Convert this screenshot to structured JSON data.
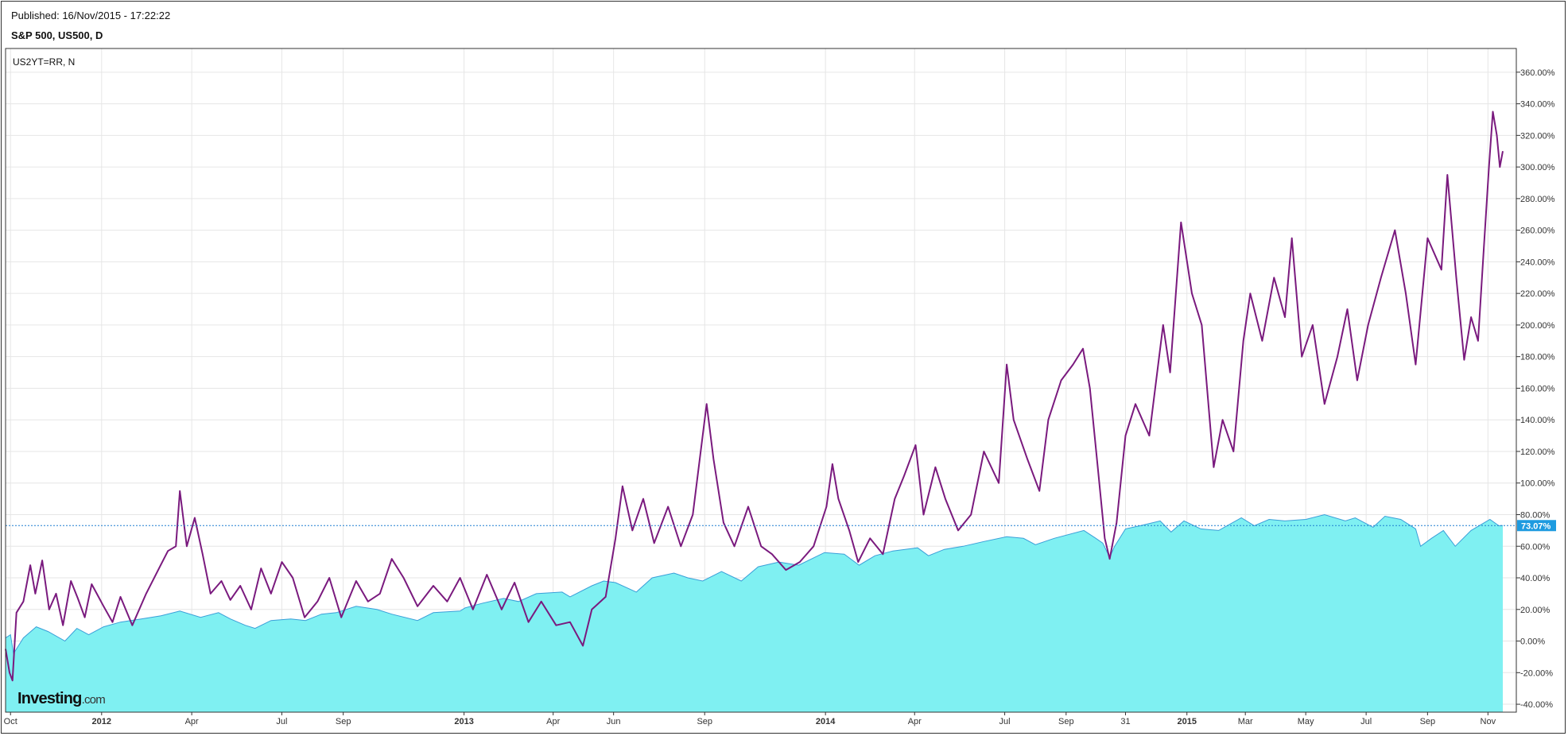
{
  "header": {
    "published": "Published: 16/Nov/2015 - 17:22:22",
    "symbol": "S&P 500, US500, D"
  },
  "logo": {
    "brand": "Investing",
    "suffix": ".com"
  },
  "colors": {
    "sp500_fill": "#7ff0f2",
    "sp500_line": "#3a9fd8",
    "us2yt_line": "#7a1a7e",
    "current_label_bg": "#1e9be0",
    "current_line": "#1e7fd0",
    "grid": "#e6e6e6"
  },
  "chart_data": {
    "type": "area",
    "title": "S&P 500, US500, D",
    "legend": "US2YT=RR, N",
    "ylabel": "",
    "xlabel": "",
    "ylim": [
      -45,
      375
    ],
    "y_ticks": [
      "360.00%",
      "340.00%",
      "320.00%",
      "300.00%",
      "280.00%",
      "260.00%",
      "240.00%",
      "220.00%",
      "200.00%",
      "180.00%",
      "160.00%",
      "140.00%",
      "120.00%",
      "100.00%",
      "80.00%",
      "60.00%",
      "40.00%",
      "20.00%",
      "0.00%",
      "-20.00%",
      "-40.00%"
    ],
    "y_tick_values": [
      360,
      340,
      320,
      300,
      280,
      260,
      240,
      220,
      200,
      180,
      160,
      140,
      120,
      100,
      80,
      60,
      40,
      20,
      0,
      -20,
      -40
    ],
    "x_range": [
      "2011-09-26",
      "2015-11-16"
    ],
    "x_ticks": [
      {
        "label": "Oct",
        "date": "2011-10-01",
        "bold": false
      },
      {
        "label": "2012",
        "date": "2012-01-01",
        "bold": true
      },
      {
        "label": "Apr",
        "date": "2012-04-01",
        "bold": false
      },
      {
        "label": "Jul",
        "date": "2012-07-01",
        "bold": false
      },
      {
        "label": "Sep",
        "date": "2012-09-01",
        "bold": false
      },
      {
        "label": "2013",
        "date": "2013-01-01",
        "bold": true
      },
      {
        "label": "Apr",
        "date": "2013-04-01",
        "bold": false
      },
      {
        "label": "Jun",
        "date": "2013-06-01",
        "bold": false
      },
      {
        "label": "Sep",
        "date": "2013-09-01",
        "bold": false
      },
      {
        "label": "2014",
        "date": "2014-01-01",
        "bold": true
      },
      {
        "label": "Apr",
        "date": "2014-04-01",
        "bold": false
      },
      {
        "label": "Jul",
        "date": "2014-07-01",
        "bold": false
      },
      {
        "label": "Sep",
        "date": "2014-09-01",
        "bold": false
      },
      {
        "label": "31",
        "date": "2014-10-31",
        "bold": false
      },
      {
        "label": "2015",
        "date": "2015-01-01",
        "bold": true
      },
      {
        "label": "Mar",
        "date": "2015-03-01",
        "bold": false
      },
      {
        "label": "May",
        "date": "2015-05-01",
        "bold": false
      },
      {
        "label": "Jul",
        "date": "2015-07-01",
        "bold": false
      },
      {
        "label": "Sep",
        "date": "2015-09-01",
        "bold": false
      },
      {
        "label": "Nov",
        "date": "2015-11-01",
        "bold": false
      }
    ],
    "current_value": 73.07,
    "current_label": "73.07%",
    "series": [
      {
        "name": "S&P 500, US500, D",
        "style": "area",
        "points": [
          [
            "2011-09-26",
            2
          ],
          [
            "2011-10-01",
            4
          ],
          [
            "2011-10-04",
            -8
          ],
          [
            "2011-10-14",
            2
          ],
          [
            "2011-10-27",
            9
          ],
          [
            "2011-11-08",
            6
          ],
          [
            "2011-11-25",
            0
          ],
          [
            "2011-12-07",
            8
          ],
          [
            "2011-12-19",
            4
          ],
          [
            "2012-01-03",
            9
          ],
          [
            "2012-01-20",
            12
          ],
          [
            "2012-02-10",
            14
          ],
          [
            "2012-03-01",
            16
          ],
          [
            "2012-03-20",
            19
          ],
          [
            "2012-04-10",
            15
          ],
          [
            "2012-04-28",
            18
          ],
          [
            "2012-05-10",
            14
          ],
          [
            "2012-05-25",
            10
          ],
          [
            "2012-06-04",
            8
          ],
          [
            "2012-06-20",
            13
          ],
          [
            "2012-07-10",
            14
          ],
          [
            "2012-07-25",
            13
          ],
          [
            "2012-08-10",
            17
          ],
          [
            "2012-08-25",
            18
          ],
          [
            "2012-09-14",
            22
          ],
          [
            "2012-10-05",
            20
          ],
          [
            "2012-10-20",
            17
          ],
          [
            "2012-11-15",
            13
          ],
          [
            "2012-12-01",
            18
          ],
          [
            "2012-12-28",
            19
          ],
          [
            "2013-01-02",
            21
          ],
          [
            "2013-01-20",
            24
          ],
          [
            "2013-02-10",
            27
          ],
          [
            "2013-02-25",
            25
          ],
          [
            "2013-03-15",
            30
          ],
          [
            "2013-04-10",
            31
          ],
          [
            "2013-04-18",
            28
          ],
          [
            "2013-05-10",
            35
          ],
          [
            "2013-05-22",
            38
          ],
          [
            "2013-06-03",
            37
          ],
          [
            "2013-06-24",
            31
          ],
          [
            "2013-07-10",
            40
          ],
          [
            "2013-08-01",
            43
          ],
          [
            "2013-08-15",
            40
          ],
          [
            "2013-08-30",
            38
          ],
          [
            "2013-09-18",
            44
          ],
          [
            "2013-10-08",
            38
          ],
          [
            "2013-10-25",
            47
          ],
          [
            "2013-11-15",
            50
          ],
          [
            "2013-12-05",
            48
          ],
          [
            "2013-12-31",
            56
          ],
          [
            "2014-01-20",
            55
          ],
          [
            "2014-02-04",
            48
          ],
          [
            "2014-02-20",
            54
          ],
          [
            "2014-03-10",
            57
          ],
          [
            "2014-04-04",
            59
          ],
          [
            "2014-04-15",
            54
          ],
          [
            "2014-05-01",
            58
          ],
          [
            "2014-05-20",
            60
          ],
          [
            "2014-06-10",
            63
          ],
          [
            "2014-07-03",
            66
          ],
          [
            "2014-07-20",
            65
          ],
          [
            "2014-08-01",
            61
          ],
          [
            "2014-08-20",
            65
          ],
          [
            "2014-09-19",
            70
          ],
          [
            "2014-10-01",
            65
          ],
          [
            "2014-10-08",
            62
          ],
          [
            "2014-10-15",
            53
          ],
          [
            "2014-10-20",
            60
          ],
          [
            "2014-10-31",
            71
          ],
          [
            "2014-11-15",
            73
          ],
          [
            "2014-12-05",
            76
          ],
          [
            "2014-12-16",
            69
          ],
          [
            "2014-12-29",
            76
          ],
          [
            "2015-01-15",
            71
          ],
          [
            "2015-02-02",
            70
          ],
          [
            "2015-02-25",
            78
          ],
          [
            "2015-03-10",
            73
          ],
          [
            "2015-03-25",
            77
          ],
          [
            "2015-04-10",
            76
          ],
          [
            "2015-05-01",
            77
          ],
          [
            "2015-05-20",
            80
          ],
          [
            "2015-06-10",
            76
          ],
          [
            "2015-06-20",
            78
          ],
          [
            "2015-07-08",
            72
          ],
          [
            "2015-07-20",
            79
          ],
          [
            "2015-08-05",
            77
          ],
          [
            "2015-08-20",
            71
          ],
          [
            "2015-08-25",
            60
          ],
          [
            "2015-09-05",
            65
          ],
          [
            "2015-09-17",
            70
          ],
          [
            "2015-09-29",
            60
          ],
          [
            "2015-10-15",
            70
          ],
          [
            "2015-11-03",
            77
          ],
          [
            "2015-11-12",
            73
          ],
          [
            "2015-11-16",
            73.07
          ]
        ]
      },
      {
        "name": "US2YT=RR, N",
        "style": "line",
        "points": [
          [
            "2011-09-26",
            -5
          ],
          [
            "2011-09-30",
            -20
          ],
          [
            "2011-10-03",
            -25
          ],
          [
            "2011-10-07",
            18
          ],
          [
            "2011-10-14",
            25
          ],
          [
            "2011-10-21",
            48
          ],
          [
            "2011-10-26",
            30
          ],
          [
            "2011-11-02",
            51
          ],
          [
            "2011-11-09",
            20
          ],
          [
            "2011-11-16",
            30
          ],
          [
            "2011-11-23",
            10
          ],
          [
            "2011-12-01",
            38
          ],
          [
            "2011-12-08",
            27
          ],
          [
            "2011-12-15",
            15
          ],
          [
            "2011-12-22",
            36
          ],
          [
            "2012-01-03",
            22
          ],
          [
            "2012-01-12",
            12
          ],
          [
            "2012-01-20",
            28
          ],
          [
            "2012-02-01",
            10
          ],
          [
            "2012-02-15",
            30
          ],
          [
            "2012-02-28",
            46
          ],
          [
            "2012-03-08",
            57
          ],
          [
            "2012-03-16",
            60
          ],
          [
            "2012-03-20",
            95
          ],
          [
            "2012-03-27",
            60
          ],
          [
            "2012-04-04",
            78
          ],
          [
            "2012-04-12",
            55
          ],
          [
            "2012-04-20",
            30
          ],
          [
            "2012-05-01",
            38
          ],
          [
            "2012-05-10",
            26
          ],
          [
            "2012-05-20",
            35
          ],
          [
            "2012-05-31",
            20
          ],
          [
            "2012-06-10",
            46
          ],
          [
            "2012-06-20",
            30
          ],
          [
            "2012-07-01",
            50
          ],
          [
            "2012-07-12",
            40
          ],
          [
            "2012-07-24",
            15
          ],
          [
            "2012-08-06",
            25
          ],
          [
            "2012-08-18",
            40
          ],
          [
            "2012-08-30",
            15
          ],
          [
            "2012-09-14",
            38
          ],
          [
            "2012-09-26",
            25
          ],
          [
            "2012-10-08",
            30
          ],
          [
            "2012-10-20",
            52
          ],
          [
            "2012-11-01",
            40
          ],
          [
            "2012-11-15",
            22
          ],
          [
            "2012-12-01",
            35
          ],
          [
            "2012-12-15",
            25
          ],
          [
            "2012-12-28",
            40
          ],
          [
            "2013-01-10",
            20
          ],
          [
            "2013-01-24",
            42
          ],
          [
            "2013-02-08",
            20
          ],
          [
            "2013-02-21",
            37
          ],
          [
            "2013-03-07",
            12
          ],
          [
            "2013-03-20",
            25
          ],
          [
            "2013-04-04",
            10
          ],
          [
            "2013-04-18",
            12
          ],
          [
            "2013-05-01",
            -3
          ],
          [
            "2013-05-10",
            20
          ],
          [
            "2013-05-24",
            28
          ],
          [
            "2013-06-03",
            65
          ],
          [
            "2013-06-10",
            98
          ],
          [
            "2013-06-20",
            70
          ],
          [
            "2013-07-01",
            90
          ],
          [
            "2013-07-12",
            62
          ],
          [
            "2013-07-26",
            85
          ],
          [
            "2013-08-08",
            60
          ],
          [
            "2013-08-20",
            80
          ],
          [
            "2013-09-03",
            150
          ],
          [
            "2013-09-10",
            115
          ],
          [
            "2013-09-20",
            75
          ],
          [
            "2013-10-01",
            60
          ],
          [
            "2013-10-15",
            85
          ],
          [
            "2013-10-28",
            60
          ],
          [
            "2013-11-08",
            55
          ],
          [
            "2013-11-22",
            45
          ],
          [
            "2013-12-06",
            50
          ],
          [
            "2013-12-20",
            60
          ],
          [
            "2014-01-02",
            85
          ],
          [
            "2014-01-08",
            112
          ],
          [
            "2014-01-14",
            90
          ],
          [
            "2014-01-25",
            70
          ],
          [
            "2014-02-03",
            50
          ],
          [
            "2014-02-15",
            65
          ],
          [
            "2014-02-28",
            55
          ],
          [
            "2014-03-12",
            90
          ],
          [
            "2014-03-21",
            104
          ],
          [
            "2014-04-02",
            124
          ],
          [
            "2014-04-10",
            80
          ],
          [
            "2014-04-22",
            110
          ],
          [
            "2014-05-02",
            90
          ],
          [
            "2014-05-15",
            70
          ],
          [
            "2014-05-28",
            80
          ],
          [
            "2014-06-10",
            120
          ],
          [
            "2014-06-25",
            100
          ],
          [
            "2014-07-03",
            175
          ],
          [
            "2014-07-10",
            140
          ],
          [
            "2014-07-24",
            115
          ],
          [
            "2014-08-05",
            95
          ],
          [
            "2014-08-14",
            140
          ],
          [
            "2014-08-27",
            165
          ],
          [
            "2014-09-08",
            175
          ],
          [
            "2014-09-18",
            185
          ],
          [
            "2014-09-25",
            160
          ],
          [
            "2014-10-03",
            110
          ],
          [
            "2014-10-10",
            65
          ],
          [
            "2014-10-15",
            52
          ],
          [
            "2014-10-22",
            75
          ],
          [
            "2014-10-31",
            130
          ],
          [
            "2014-11-10",
            150
          ],
          [
            "2014-11-24",
            130
          ],
          [
            "2014-12-08",
            200
          ],
          [
            "2014-12-15",
            170
          ],
          [
            "2014-12-26",
            265
          ],
          [
            "2015-01-06",
            220
          ],
          [
            "2015-01-16",
            200
          ],
          [
            "2015-01-28",
            110
          ],
          [
            "2015-02-06",
            140
          ],
          [
            "2015-02-17",
            120
          ],
          [
            "2015-02-27",
            190
          ],
          [
            "2015-03-06",
            220
          ],
          [
            "2015-03-18",
            190
          ],
          [
            "2015-03-30",
            230
          ],
          [
            "2015-04-10",
            205
          ],
          [
            "2015-04-17",
            255
          ],
          [
            "2015-04-27",
            180
          ],
          [
            "2015-05-08",
            200
          ],
          [
            "2015-05-20",
            150
          ],
          [
            "2015-06-02",
            180
          ],
          [
            "2015-06-12",
            210
          ],
          [
            "2015-06-22",
            165
          ],
          [
            "2015-07-03",
            200
          ],
          [
            "2015-07-16",
            230
          ],
          [
            "2015-07-30",
            260
          ],
          [
            "2015-08-10",
            220
          ],
          [
            "2015-08-20",
            175
          ],
          [
            "2015-09-01",
            255
          ],
          [
            "2015-09-15",
            235
          ],
          [
            "2015-09-21",
            295
          ],
          [
            "2015-09-30",
            230
          ],
          [
            "2015-10-08",
            178
          ],
          [
            "2015-10-15",
            205
          ],
          [
            "2015-10-22",
            190
          ],
          [
            "2015-10-28",
            250
          ],
          [
            "2015-11-02",
            300
          ],
          [
            "2015-11-06",
            335
          ],
          [
            "2015-11-10",
            320
          ],
          [
            "2015-11-13",
            300
          ],
          [
            "2015-11-16",
            310
          ]
        ]
      }
    ]
  }
}
